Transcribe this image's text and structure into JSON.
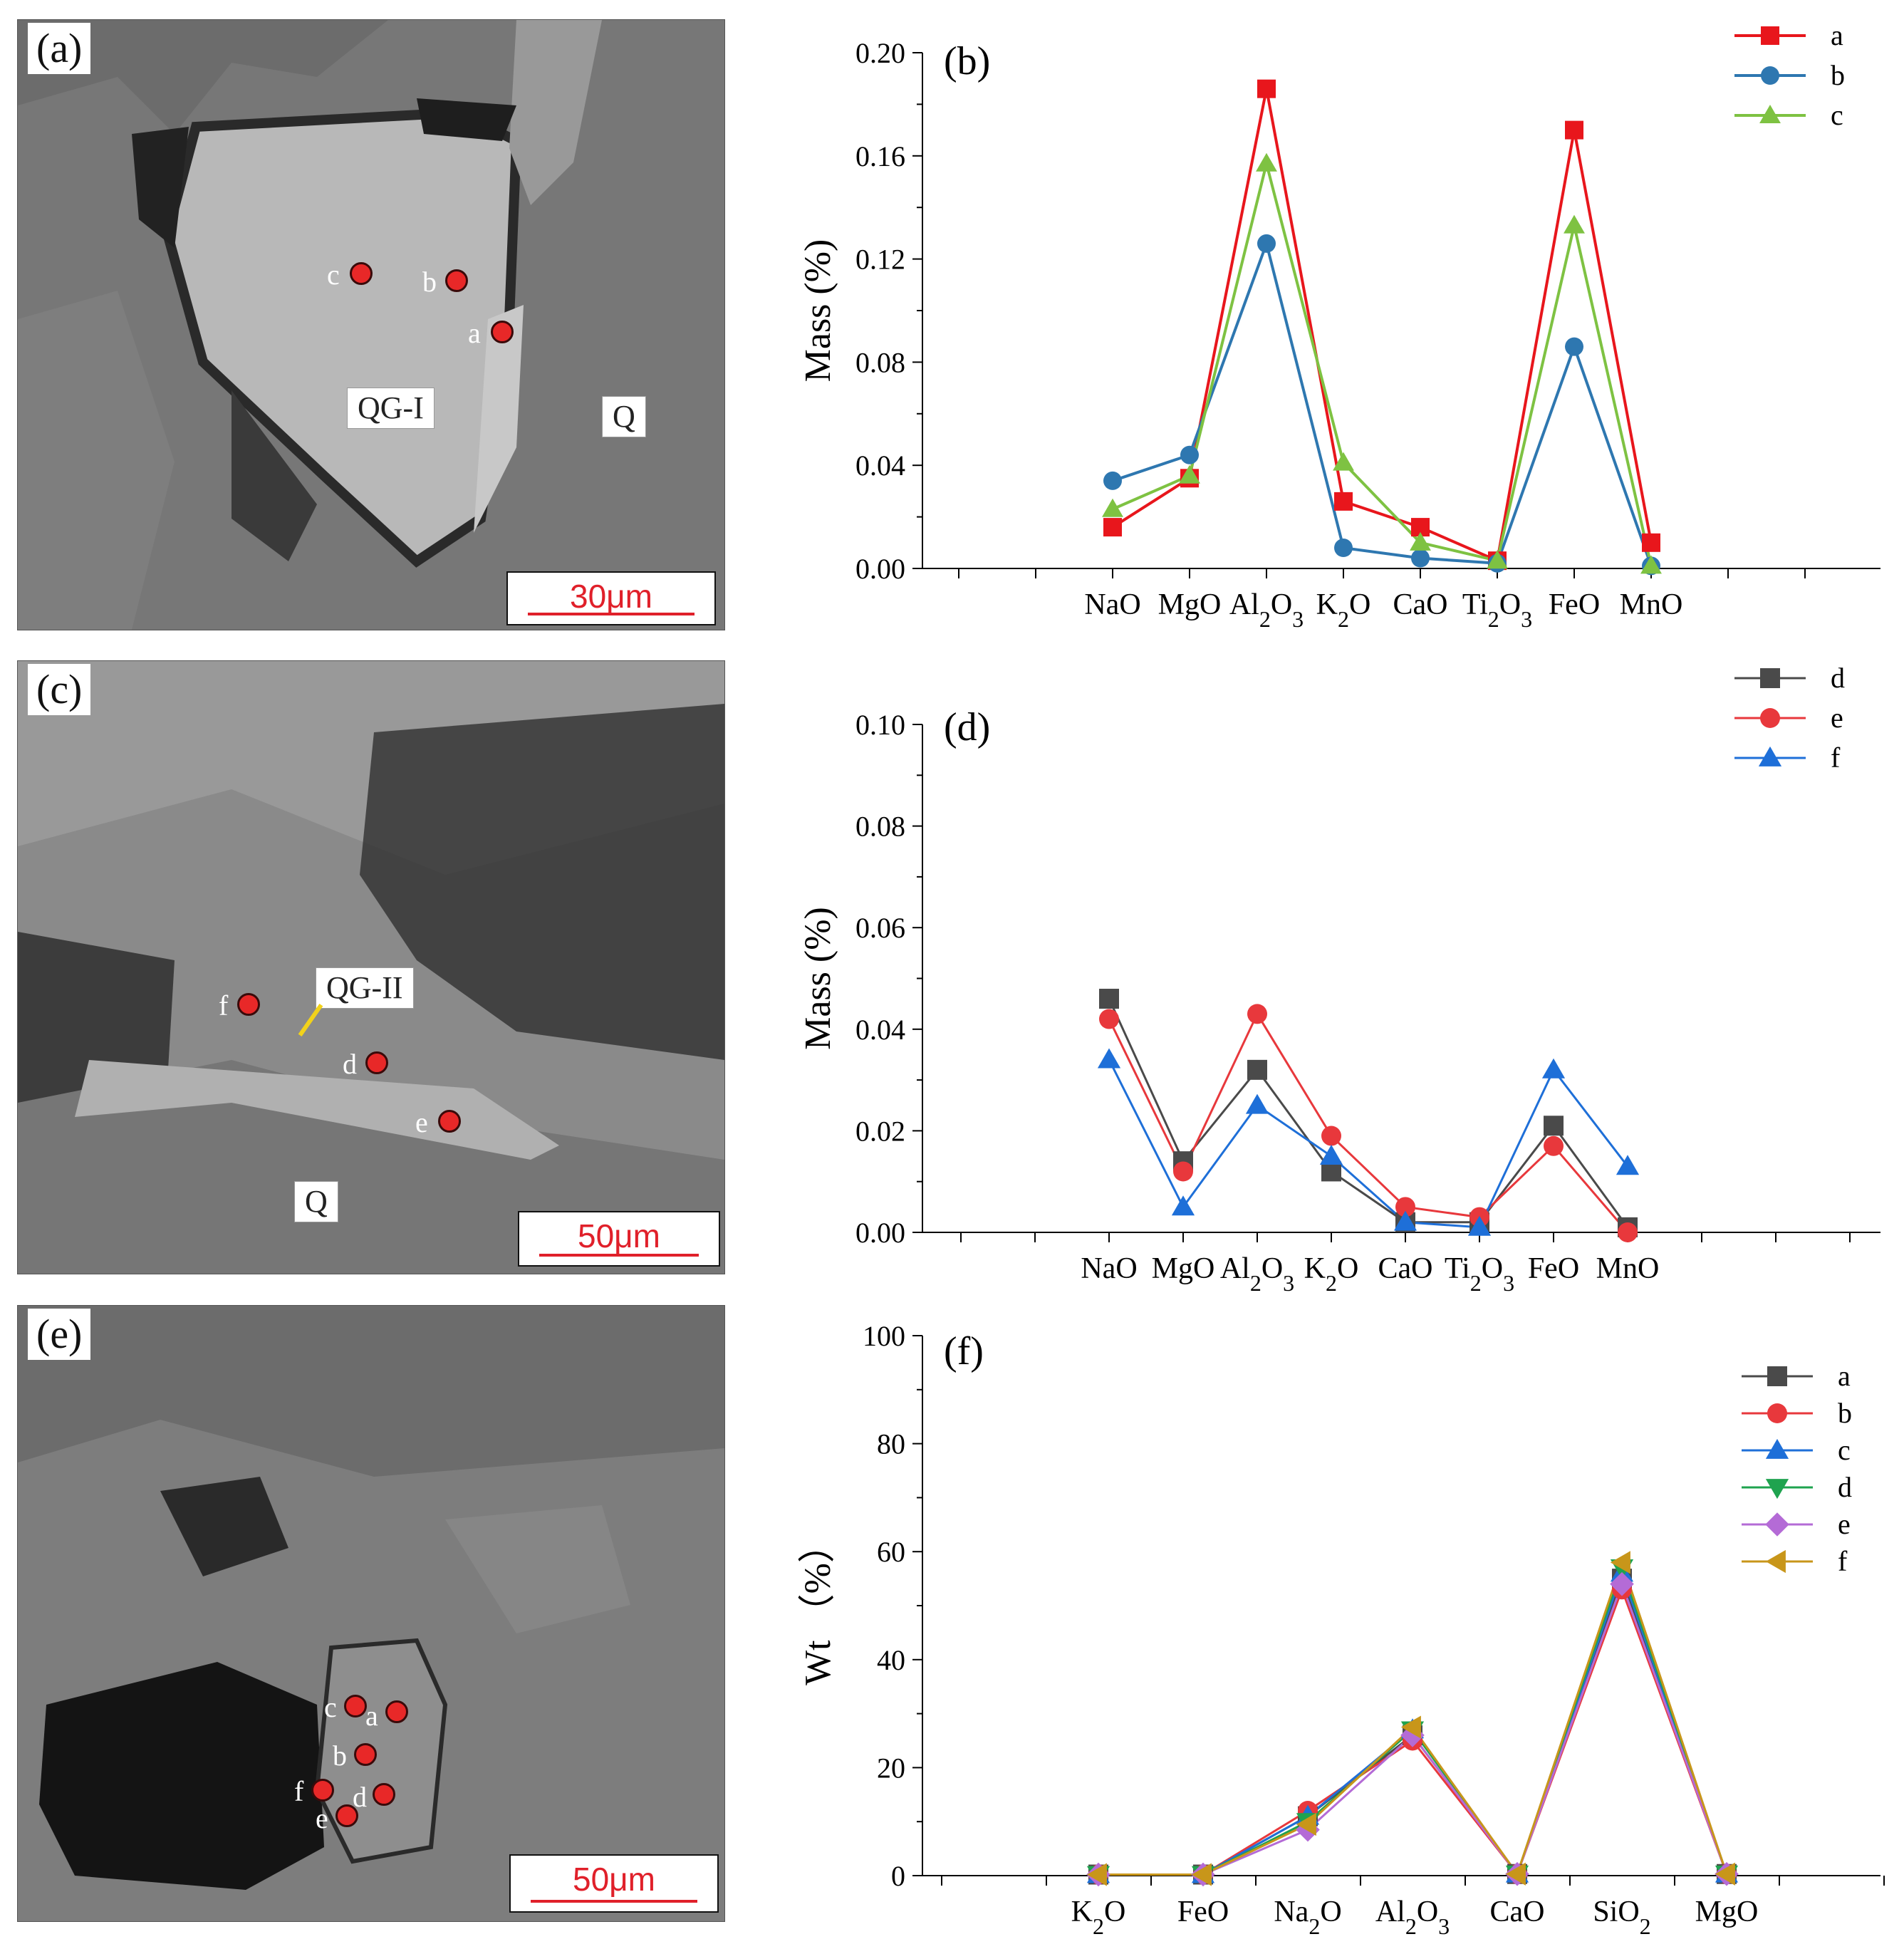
{
  "panels": {
    "a": {
      "label": "(a)",
      "scale": "30μm",
      "tags": [
        "QG-I",
        "Q"
      ],
      "spots": [
        "a",
        "b",
        "c"
      ]
    },
    "c": {
      "label": "(c)",
      "scale": "50μm",
      "tags": [
        "QG-II",
        "Q"
      ],
      "spots": [
        "d",
        "e",
        "f"
      ]
    },
    "e": {
      "label": "(e)",
      "scale": "50μm",
      "tags": [],
      "spots": [
        "a",
        "b",
        "c",
        "d",
        "e",
        "f"
      ]
    }
  },
  "chart_data": [
    {
      "id": "b",
      "type": "line",
      "panel_label": "(b)",
      "ylabel": "Mass (%)",
      "ylim": [
        0,
        0.2
      ],
      "yticks": [
        "0.00",
        "0.04",
        "0.08",
        "0.12",
        "0.16",
        "0.20"
      ],
      "categories": [
        "NaO",
        "MgO",
        "Al2O3",
        "K2O",
        "CaO",
        "Ti2O3",
        "FeO",
        "MnO"
      ],
      "series": [
        {
          "name": "a",
          "color": "#e8161c",
          "marker": "square",
          "values": [
            0.016,
            0.035,
            0.186,
            0.026,
            0.016,
            0.003,
            0.17,
            0.01
          ]
        },
        {
          "name": "b",
          "color": "#2e77b0",
          "marker": "circle",
          "values": [
            0.034,
            0.044,
            0.126,
            0.008,
            0.004,
            0.002,
            0.086,
            0.001
          ]
        },
        {
          "name": "c",
          "color": "#7ec242",
          "marker": "triangle",
          "values": [
            0.023,
            0.036,
            0.157,
            0.041,
            0.01,
            0.003,
            0.133,
            0.001
          ]
        }
      ]
    },
    {
      "id": "d",
      "type": "line",
      "panel_label": "(d)",
      "ylabel": "Mass (%)",
      "ylim": [
        0,
        0.1
      ],
      "yticks": [
        "0.00",
        "0.02",
        "0.04",
        "0.06",
        "0.08",
        "0.10"
      ],
      "categories": [
        "NaO",
        "MgO",
        "Al2O3",
        "K2O",
        "CaO",
        "Ti2O3",
        "FeO",
        "MnO"
      ],
      "series": [
        {
          "name": "d",
          "color": "#4a4a4a",
          "marker": "square",
          "values": [
            0.046,
            0.014,
            0.032,
            0.012,
            0.002,
            0.002,
            0.021,
            0.001
          ]
        },
        {
          "name": "e",
          "color": "#e8383c",
          "marker": "circle",
          "values": [
            0.042,
            0.012,
            0.043,
            0.019,
            0.005,
            0.003,
            0.017,
            0.0
          ]
        },
        {
          "name": "f",
          "color": "#1e6fd8",
          "marker": "triangle",
          "values": [
            0.034,
            0.005,
            0.025,
            0.015,
            0.002,
            0.001,
            0.032,
            0.013
          ]
        }
      ]
    },
    {
      "id": "f",
      "type": "line",
      "panel_label": "(f)",
      "ylabel": "Wt （%）",
      "ylim": [
        0,
        100
      ],
      "yticks": [
        "0",
        "20",
        "40",
        "60",
        "80",
        "100"
      ],
      "categories": [
        "K2O",
        "FeO",
        "Na2O",
        "Al2O3",
        "CaO",
        "SiO2",
        "MgO"
      ],
      "series": [
        {
          "name": "a",
          "color": "#4a4a4a",
          "marker": "square",
          "values": [
            0.2,
            0.2,
            11,
            26,
            0.3,
            55,
            0.3
          ]
        },
        {
          "name": "b",
          "color": "#e8383c",
          "marker": "circle",
          "values": [
            0.2,
            0.2,
            12,
            25,
            0.3,
            53,
            0.3
          ]
        },
        {
          "name": "c",
          "color": "#1e6fd8",
          "marker": "triangle",
          "values": [
            0.2,
            0.2,
            11,
            27,
            0.3,
            56,
            0.3
          ]
        },
        {
          "name": "d",
          "color": "#1fa34f",
          "marker": "triangle-down",
          "values": [
            0.2,
            0.2,
            10,
            27,
            0.3,
            57,
            0.3
          ]
        },
        {
          "name": "e",
          "color": "#b46bd6",
          "marker": "diamond",
          "values": [
            0.2,
            0.2,
            8.5,
            26,
            0.3,
            54,
            0.3
          ]
        },
        {
          "name": "f",
          "color": "#c8961a",
          "marker": "triangle-left",
          "values": [
            0.2,
            0.2,
            9.5,
            27.5,
            0.3,
            58,
            0.3
          ]
        }
      ]
    }
  ]
}
